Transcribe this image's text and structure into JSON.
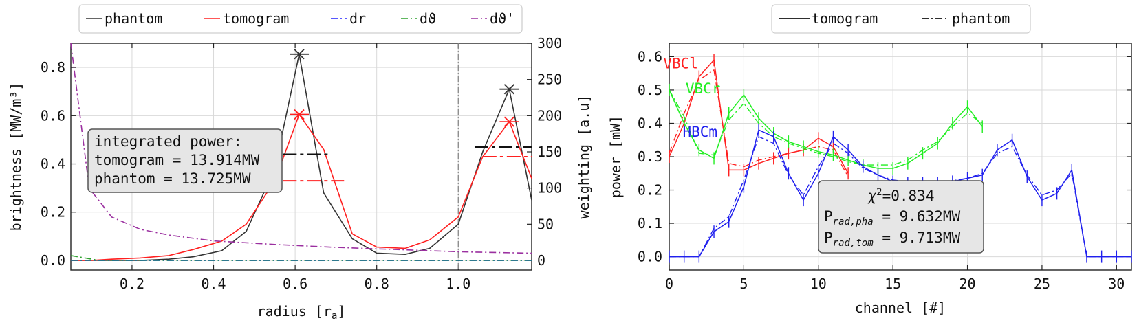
{
  "chart_data": [
    {
      "type": "line",
      "xlabel_main": "radius [r",
      "xlabel_sub": "a",
      "xlabel_end": "]",
      "ylabel": "brightness [MW/m³]",
      "ylabel_right": "weighting [a.u]",
      "xlim": [
        0.05,
        1.18
      ],
      "ylim": [
        -0.04,
        0.9
      ],
      "ylim_right": [
        -13.3,
        300
      ],
      "xticks": [
        "0.2",
        "0.4",
        "0.6",
        "0.8",
        "1.0"
      ],
      "yticks": [
        "0.0",
        "0.2",
        "0.4",
        "0.6",
        "0.8"
      ],
      "yticks_right": [
        "0",
        "50",
        "100",
        "150",
        "200",
        "250",
        "300"
      ],
      "grid": true,
      "legend_position": "top-center-outside",
      "legend": [
        {
          "label": "phantom",
          "color": "#333333",
          "style": "solid"
        },
        {
          "label": "tomogram",
          "color": "#ff2020",
          "style": "solid"
        },
        {
          "label": "dr",
          "color": "#2020ff",
          "style": "dashdot"
        },
        {
          "label": "dϑ",
          "color": "#2ca02c",
          "style": "dashdot"
        },
        {
          "label": "dϑ'",
          "color": "#9b30a0",
          "style": "dashdot"
        }
      ],
      "series": [
        {
          "name": "phantom",
          "color": "#333333",
          "dash": "",
          "x": [
            0.05,
            0.15,
            0.22,
            0.29,
            0.35,
            0.42,
            0.48,
            0.55,
            0.61,
            0.67,
            0.74,
            0.8,
            0.87,
            0.93,
            1.0,
            1.06,
            1.125,
            1.18
          ],
          "y": [
            0.0,
            0.0,
            0.0,
            0.005,
            0.015,
            0.04,
            0.12,
            0.38,
            0.855,
            0.28,
            0.09,
            0.03,
            0.025,
            0.05,
            0.15,
            0.45,
            0.71,
            0.25
          ]
        },
        {
          "name": "tomogram",
          "color": "#ff2020",
          "dash": "",
          "x": [
            0.05,
            0.1,
            0.15,
            0.22,
            0.29,
            0.35,
            0.42,
            0.48,
            0.55,
            0.61,
            0.67,
            0.74,
            0.8,
            0.87,
            0.93,
            1.0,
            1.06,
            1.125,
            1.18
          ],
          "y": [
            0.0,
            0.0,
            0.005,
            0.01,
            0.02,
            0.045,
            0.08,
            0.15,
            0.33,
            0.605,
            0.46,
            0.11,
            0.055,
            0.05,
            0.085,
            0.18,
            0.43,
            0.575,
            0.34
          ]
        },
        {
          "name": "dϑ'",
          "color": "#9b30a0",
          "dash": "10,4,2,4",
          "axis": "right",
          "x": [
            0.05,
            0.095,
            0.15,
            0.22,
            0.29,
            0.4,
            0.55,
            0.7,
            0.85,
            1.0,
            1.18
          ],
          "y": [
            300,
            100,
            60,
            43,
            35,
            27,
            22,
            18,
            15,
            12,
            10
          ]
        },
        {
          "name": "dϑ",
          "color": "#2ca02c",
          "dash": "10,4,2,4",
          "x": [
            0.05,
            0.12,
            1.18
          ],
          "y": [
            0.02,
            0.0,
            0.0
          ]
        },
        {
          "name": "dr",
          "color": "#2020ff",
          "dash": "10,4,2,4",
          "x": [
            0.05,
            1.18
          ],
          "y": [
            0.0,
            0.0
          ]
        },
        {
          "name": "",
          "color": "#1f7a7a",
          "dash": "10,4,2,4",
          "x": [
            0.05,
            1.18
          ],
          "y": [
            0.0,
            0.0
          ]
        }
      ],
      "peak_markers": [
        {
          "x": 0.61,
          "y": 0.855,
          "color": "#333333"
        },
        {
          "x": 0.61,
          "y": 0.605,
          "color": "#ff2020"
        },
        {
          "x": 1.125,
          "y": 0.71,
          "color": "#333333"
        },
        {
          "x": 1.125,
          "y": 0.575,
          "color": "#ff2020"
        }
      ],
      "integral_bars": [
        {
          "x0": 0.57,
          "x1": 0.68,
          "y": 0.44,
          "color": "#111111"
        },
        {
          "x0": 0.57,
          "x1": 0.72,
          "y": 0.33,
          "color": "#ff2020"
        },
        {
          "x0": 1.04,
          "x1": 1.18,
          "y": 0.47,
          "color": "#111111"
        },
        {
          "x0": 1.06,
          "x1": 1.18,
          "y": 0.43,
          "color": "#ff2020"
        }
      ],
      "vline_x": 1.0,
      "annotation": [
        "integrated power:",
        "tomogram = 13.914MW",
        "phantom = 13.725MW"
      ]
    },
    {
      "type": "line",
      "xlabel": "channel [#]",
      "ylabel": "power [mW]",
      "xlim": [
        0,
        31
      ],
      "ylim": [
        -0.04,
        0.64
      ],
      "xticks": [
        "0",
        "5",
        "10",
        "15",
        "20",
        "25",
        "30"
      ],
      "yticks": [
        "0.0",
        "0.1",
        "0.2",
        "0.3",
        "0.4",
        "0.5",
        "0.6"
      ],
      "grid": true,
      "legend_position": "top-center-outside",
      "legend": [
        {
          "label": "tomogram",
          "color": "#111111",
          "style": "solid"
        },
        {
          "label": "phantom",
          "color": "#111111",
          "style": "dashdot"
        }
      ],
      "groups": [
        {
          "name": "VBCl",
          "color": "#ff2020",
          "x": [
            0,
            1,
            2,
            3,
            4,
            5,
            6,
            7,
            8,
            9,
            10,
            11,
            12
          ],
          "tomogram": [
            0.3,
            0.4,
            0.54,
            0.59,
            0.26,
            0.26,
            0.28,
            0.295,
            0.31,
            0.32,
            0.355,
            0.33,
            0.25
          ],
          "phantom": [
            0.31,
            0.43,
            0.53,
            0.56,
            0.28,
            0.27,
            0.29,
            0.3,
            0.31,
            0.32,
            0.33,
            0.32,
            0.24
          ]
        },
        {
          "name": "VBCr",
          "color": "#22ee22",
          "x": [
            0,
            1,
            2,
            3,
            4,
            5,
            6,
            7,
            8,
            9,
            10,
            11,
            12,
            13,
            14,
            15,
            16,
            17,
            18,
            19,
            20,
            21
          ],
          "tomogram": [
            0.5,
            0.4,
            0.32,
            0.295,
            0.43,
            0.485,
            0.415,
            0.37,
            0.345,
            0.33,
            0.315,
            0.305,
            0.29,
            0.275,
            0.265,
            0.265,
            0.28,
            0.31,
            0.34,
            0.4,
            0.45,
            0.39
          ],
          "phantom": [
            0.5,
            0.42,
            0.31,
            0.305,
            0.41,
            0.46,
            0.4,
            0.36,
            0.34,
            0.325,
            0.31,
            0.3,
            0.285,
            0.275,
            0.275,
            0.275,
            0.29,
            0.32,
            0.345,
            0.39,
            0.43,
            0.4
          ]
        },
        {
          "name": "HBCm",
          "color": "#2020ee",
          "x": [
            0,
            1,
            2,
            3,
            4,
            5,
            6,
            7,
            8,
            9,
            10,
            11,
            12,
            13,
            14,
            15,
            16,
            17,
            18,
            19,
            20,
            21,
            22,
            23,
            24,
            25,
            26,
            27,
            28,
            29,
            30,
            31
          ],
          "tomogram": [
            0.0,
            0.0,
            0.0,
            0.075,
            0.105,
            0.21,
            0.38,
            0.36,
            0.25,
            0.17,
            0.25,
            0.36,
            0.32,
            0.27,
            0.245,
            0.225,
            0.22,
            0.22,
            0.22,
            0.225,
            0.235,
            0.245,
            0.32,
            0.35,
            0.24,
            0.17,
            0.19,
            0.26,
            0.0,
            0.0,
            0.0,
            0.0
          ],
          "phantom": [
            0.0,
            0.0,
            0.0,
            0.085,
            0.12,
            0.23,
            0.36,
            0.34,
            0.245,
            0.185,
            0.27,
            0.34,
            0.31,
            0.265,
            0.245,
            0.23,
            0.225,
            0.222,
            0.222,
            0.228,
            0.235,
            0.25,
            0.31,
            0.33,
            0.245,
            0.185,
            0.2,
            0.25,
            0.0,
            0.0,
            0.0,
            0.0
          ]
        }
      ],
      "group_labels": [
        {
          "text": "VBCl",
          "x": -0.4,
          "y": 0.565,
          "color": "#ff2020"
        },
        {
          "text": "VBCr",
          "x": 1.1,
          "y": 0.49,
          "color": "#22ee22"
        },
        {
          "text": "HBCm",
          "x": 0.9,
          "y": 0.36,
          "color": "#2020ee"
        }
      ],
      "annotation": {
        "chi_main": "χ",
        "chi_sup": "2",
        "chi_value": "=0.834",
        "pha_main": "P",
        "pha_sub": "rad,pha",
        "pha_value": " = 9.632MW",
        "tom_main": "P",
        "tom_sub": "rad,tom",
        "tom_value": " = 9.713MW"
      }
    }
  ]
}
